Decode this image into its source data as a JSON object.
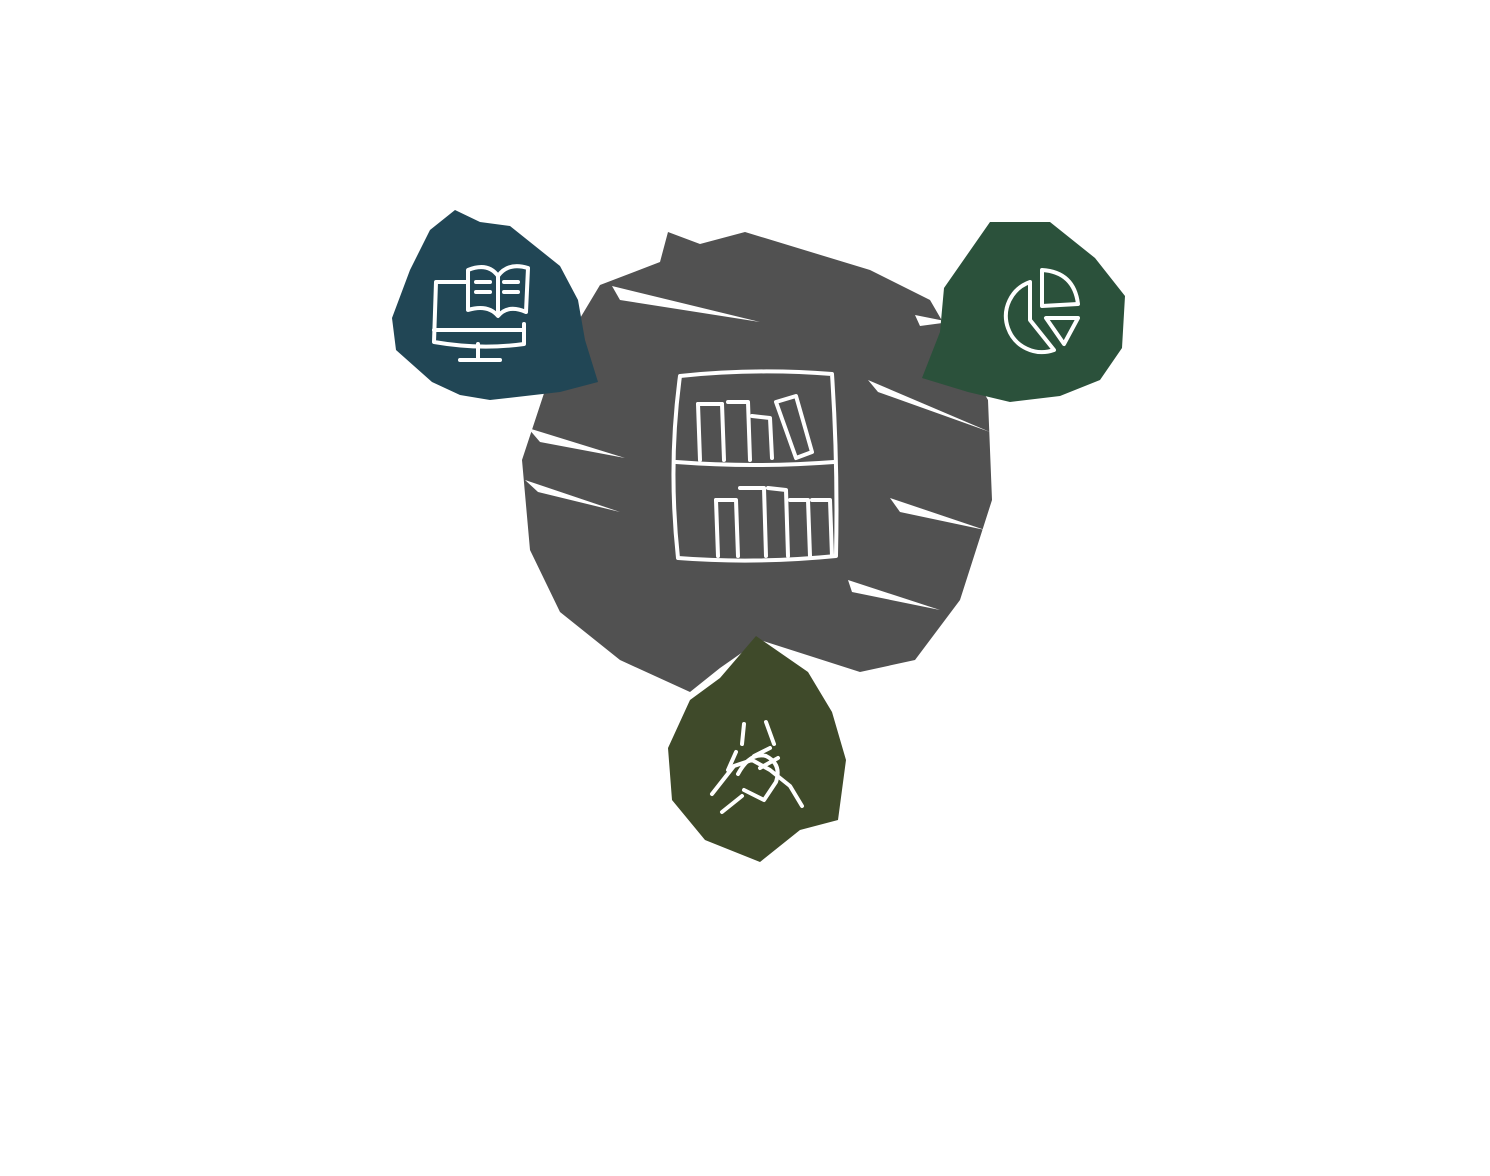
{
  "diagram": {
    "colors": {
      "background": "#ffffff",
      "center": "#515151",
      "top_left": "#214655",
      "top_right": "#2b513b",
      "bottom": "#3f4a2a",
      "icon_stroke": "#ffffff"
    },
    "nodes": [
      {
        "id": "center",
        "icon": "bookshelf-icon",
        "color_key": "center"
      },
      {
        "id": "top-left",
        "icon": "digital-library-icon",
        "color_key": "top_left"
      },
      {
        "id": "top-right",
        "icon": "pie-chart-icon",
        "color_key": "top_right"
      },
      {
        "id": "bottom",
        "icon": "joined-hands-icon",
        "color_key": "bottom"
      }
    ]
  }
}
